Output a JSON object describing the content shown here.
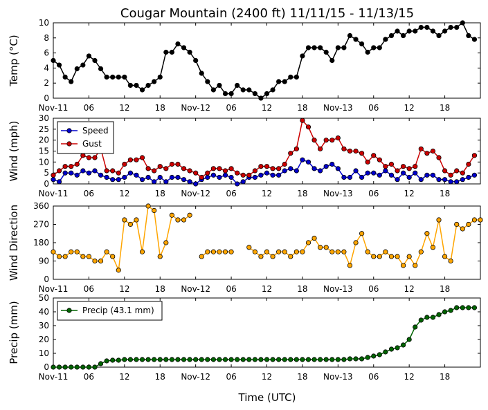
{
  "title": "Cougar Mountain (2400 ft) 11/11/15 - 11/13/15",
  "xlabel": "Time (UTC)",
  "x_tick_labels": [
    "Nov-11",
    "06",
    "12",
    "18",
    "Nov-12",
    "06",
    "12",
    "18",
    "Nov-13",
    "06",
    "12",
    "18"
  ],
  "x_tick_hours": [
    0,
    6,
    12,
    18,
    24,
    30,
    36,
    42,
    48,
    54,
    60,
    66
  ],
  "x_range_hours": [
    0,
    72
  ],
  "chart_data": [
    {
      "type": "line",
      "name": "temp",
      "ylabel": "Temp (°C)",
      "ylim": [
        0,
        10
      ],
      "yticks": [
        0,
        2,
        4,
        6,
        8,
        10
      ],
      "series": [
        {
          "name": "",
          "color": "#000000",
          "values": [
            5.0,
            4.4,
            2.8,
            2.2,
            3.9,
            4.4,
            5.6,
            5.0,
            3.9,
            2.8,
            2.8,
            2.8,
            2.8,
            1.7,
            1.7,
            1.1,
            1.7,
            2.2,
            2.8,
            6.1,
            6.1,
            7.2,
            6.7,
            6.1,
            5.0,
            3.3,
            2.2,
            1.1,
            1.7,
            0.6,
            0.6,
            1.7,
            1.1,
            1.1,
            0.6,
            0.0,
            0.6,
            1.1,
            2.2,
            2.2,
            2.8,
            2.8,
            5.6,
            6.7,
            6.7,
            6.7,
            6.1,
            5.0,
            6.7,
            6.7,
            8.3,
            7.8,
            7.2,
            6.1,
            6.7,
            6.7,
            7.8,
            8.3,
            8.9,
            8.3,
            8.9,
            8.9,
            9.4,
            9.4,
            8.9,
            8.3,
            8.9,
            9.4,
            9.4,
            10.0,
            8.3,
            7.8
          ]
        }
      ]
    },
    {
      "type": "line",
      "name": "wind",
      "ylabel": "Wind (mph)",
      "ylim": [
        0,
        30
      ],
      "yticks": [
        0,
        5,
        10,
        15,
        20,
        25,
        30
      ],
      "legend": "top-left",
      "series": [
        {
          "name": "Speed",
          "color": "#0000cc",
          "values": [
            2,
            1,
            5,
            5,
            4,
            6,
            5,
            6,
            4,
            3,
            2,
            2,
            3,
            5,
            4,
            2,
            3,
            1,
            3,
            1,
            3,
            3,
            2,
            1,
            0,
            2,
            3,
            4,
            3,
            4,
            3,
            0,
            1,
            3,
            3,
            4,
            5,
            4,
            4,
            6,
            7,
            6,
            11,
            10,
            7,
            6,
            8,
            9,
            7,
            3,
            3,
            6,
            3,
            5,
            5,
            4,
            6,
            4,
            2,
            5,
            3,
            5,
            2,
            4,
            4,
            2,
            2,
            1,
            1,
            2,
            3,
            4
          ]
        },
        {
          "name": "Gust",
          "color": "#cc0000",
          "values": [
            4,
            6,
            8,
            8,
            9,
            13,
            12,
            12,
            16,
            6,
            6,
            5,
            9,
            11,
            11,
            12,
            7,
            6,
            8,
            7,
            9,
            9,
            7,
            6,
            5,
            3,
            5,
            7,
            7,
            6,
            7,
            5,
            4,
            4,
            6,
            8,
            8,
            7,
            7,
            9,
            14,
            16,
            29,
            26,
            20,
            16,
            20,
            20,
            21,
            16,
            15,
            15,
            14,
            10,
            13,
            11,
            8,
            9,
            6,
            8,
            7,
            8,
            16,
            14,
            15,
            12,
            6,
            4,
            6,
            5,
            9,
            13
          ]
        }
      ]
    },
    {
      "type": "line",
      "name": "direction",
      "ylabel": "Wind Direction",
      "ylim": [
        0,
        360
      ],
      "yticks": [
        0,
        90,
        180,
        270,
        360
      ],
      "series": [
        {
          "name": "",
          "color": "#ffa500",
          "values": [
            135,
            112,
            112,
            135,
            135,
            112,
            112,
            90,
            90,
            135,
            112,
            45,
            292,
            270,
            292,
            135,
            360,
            338,
            112,
            180,
            315,
            292,
            292,
            315,
            null,
            112,
            135,
            135,
            135,
            135,
            135,
            null,
            null,
            157,
            135,
            112,
            135,
            112,
            135,
            135,
            112,
            135,
            135,
            180,
            202,
            157,
            157,
            135,
            135,
            135,
            68,
            180,
            225,
            135,
            112,
            112,
            135,
            112,
            112,
            68,
            112,
            68,
            135,
            225,
            157,
            292,
            112,
            90,
            270,
            248,
            270,
            292,
            292
          ]
        }
      ]
    },
    {
      "type": "line",
      "name": "precip",
      "ylabel": "Precip (mm)",
      "ylim": [
        0,
        50
      ],
      "yticks": [
        0,
        10,
        20,
        30,
        40,
        50
      ],
      "legend": "top-left",
      "series": [
        {
          "name": "Precip (43.1 mm)",
          "color": "#006400",
          "values": [
            0,
            0,
            0,
            0,
            0,
            0,
            0,
            0,
            2.5,
            4.5,
            5,
            5,
            5.5,
            5.5,
            5.5,
            5.5,
            5.5,
            5.5,
            5.5,
            5.5,
            5.5,
            5.5,
            5.5,
            5.5,
            5.5,
            5.5,
            5.5,
            5.5,
            5.5,
            5.5,
            5.5,
            5.5,
            5.5,
            5.5,
            5.5,
            5.5,
            5.5,
            5.5,
            5.5,
            5.5,
            5.5,
            5.5,
            5.5,
            5.5,
            5.5,
            5.5,
            5.5,
            5.5,
            5.5,
            5.5,
            6,
            6,
            6,
            7,
            8,
            9,
            11,
            13,
            14,
            16,
            20,
            29,
            34,
            36,
            36,
            38,
            40,
            41,
            43,
            43,
            43,
            43
          ]
        }
      ]
    }
  ]
}
